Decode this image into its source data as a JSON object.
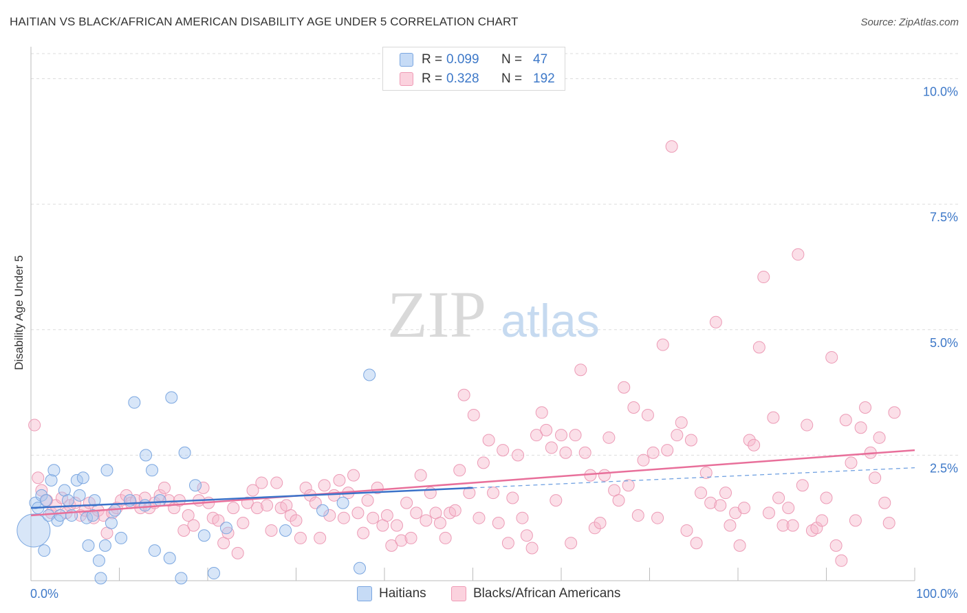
{
  "header": {
    "title": "HAITIAN VS BLACK/AFRICAN AMERICAN DISABILITY AGE UNDER 5 CORRELATION CHART",
    "source": "Source: ZipAtlas.com"
  },
  "watermark": {
    "zip": "ZIP",
    "atlas": "atlas"
  },
  "legend": {
    "rows": [
      {
        "r_label": "R =",
        "r_value": "0.099",
        "n_label": "N =",
        "n_value": "47",
        "color": "#a9c8f0"
      },
      {
        "r_label": "R =",
        "r_value": "0.328",
        "n_label": "N =",
        "n_value": "192",
        "color": "#f6b8cb"
      }
    ]
  },
  "bottom_legend": {
    "haitians": "Haitians",
    "blacks": "Blacks/African Americans"
  },
  "chart_data": {
    "type": "scatter",
    "title": "HAITIAN VS BLACK/AFRICAN AMERICAN DISABILITY AGE UNDER 5 CORRELATION CHART",
    "xlabel": "",
    "ylabel": "Disability Age Under 5",
    "xlim": [
      0,
      100
    ],
    "ylim": [
      0,
      10.5
    ],
    "x_tick_labels": [
      "0.0%",
      "100.0%"
    ],
    "y_tick_labels": [
      "2.5%",
      "5.0%",
      "7.5%",
      "10.0%"
    ],
    "y_ticks": [
      2.5,
      5.0,
      7.5,
      10.0
    ],
    "grid": true,
    "legend_position": "top-center",
    "series": [
      {
        "name": "Haitians",
        "color": "#6a9de0",
        "fill": "#a9c8f0",
        "r": 0.099,
        "n": 47,
        "trend": {
          "x0": 0,
          "y0": 1.45,
          "x1": 50,
          "y1": 1.85,
          "dash_to_x": 100,
          "dash_to_y": 2.25
        },
        "points": [
          [
            0.3,
            1.0,
            3
          ],
          [
            0.5,
            1.55,
            1
          ],
          [
            0.8,
            1.45,
            1
          ],
          [
            1.2,
            1.7,
            1
          ],
          [
            1.5,
            0.6,
            1
          ],
          [
            1.7,
            1.6,
            1
          ],
          [
            2.0,
            1.3,
            1
          ],
          [
            2.3,
            2.0,
            1
          ],
          [
            2.6,
            2.2,
            1
          ],
          [
            3.0,
            1.2,
            1
          ],
          [
            3.3,
            1.3,
            1
          ],
          [
            3.8,
            1.8,
            1
          ],
          [
            4.2,
            1.6,
            1
          ],
          [
            4.6,
            1.3,
            1
          ],
          [
            5.2,
            2.0,
            1
          ],
          [
            5.5,
            1.7,
            1
          ],
          [
            5.9,
            2.05,
            1
          ],
          [
            6.3,
            1.25,
            1
          ],
          [
            6.5,
            0.7,
            1
          ],
          [
            7.0,
            1.3,
            1
          ],
          [
            7.2,
            1.6,
            1
          ],
          [
            7.7,
            0.4,
            1
          ],
          [
            7.9,
            0.05,
            1
          ],
          [
            8.4,
            0.7,
            1
          ],
          [
            8.6,
            2.2,
            1
          ],
          [
            9.1,
            1.15,
            1
          ],
          [
            9.5,
            1.4,
            1
          ],
          [
            10.2,
            0.85,
            1
          ],
          [
            11.2,
            1.6,
            1
          ],
          [
            11.7,
            3.55,
            1
          ],
          [
            12.9,
            1.5,
            1
          ],
          [
            13.0,
            2.5,
            1
          ],
          [
            13.7,
            2.2,
            1
          ],
          [
            14.0,
            0.6,
            1
          ],
          [
            14.6,
            1.6,
            1
          ],
          [
            15.7,
            0.45,
            1
          ],
          [
            15.9,
            3.65,
            1
          ],
          [
            17.0,
            0.05,
            1
          ],
          [
            17.4,
            2.55,
            1
          ],
          [
            18.6,
            1.9,
            1
          ],
          [
            19.6,
            0.9,
            1
          ],
          [
            20.7,
            0.15,
            1
          ],
          [
            22.1,
            1.05,
            1
          ],
          [
            28.8,
            1.0,
            1
          ],
          [
            33.0,
            1.4,
            1
          ],
          [
            35.3,
            1.55,
            1
          ],
          [
            37.2,
            0.25,
            1
          ],
          [
            38.3,
            4.1,
            1
          ]
        ]
      },
      {
        "name": "Blacks/African Americans",
        "color": "#e86f9a",
        "fill": "#f6b8cb",
        "r": 0.328,
        "n": 192,
        "trend": {
          "x0": 0,
          "y0": 1.3,
          "x1": 100,
          "y1": 2.6
        },
        "points": [
          [
            0.4,
            3.1
          ],
          [
            0.8,
            2.05
          ],
          [
            1.2,
            1.8
          ],
          [
            1.8,
            1.6
          ],
          [
            2.3,
            1.35
          ],
          [
            2.8,
            1.5
          ],
          [
            3.5,
            1.65
          ],
          [
            4.0,
            1.35
          ],
          [
            4.4,
            1.5
          ],
          [
            5.0,
            1.55
          ],
          [
            5.6,
            1.3
          ],
          [
            6.1,
            1.4
          ],
          [
            6.6,
            1.55
          ],
          [
            7.1,
            1.25
          ],
          [
            7.6,
            1.4
          ],
          [
            8.2,
            1.3
          ],
          [
            8.6,
            0.95
          ],
          [
            9.2,
            1.35
          ],
          [
            9.7,
            1.45
          ],
          [
            10.2,
            1.6
          ],
          [
            10.8,
            1.7
          ],
          [
            11.3,
            1.55
          ],
          [
            11.9,
            1.6
          ],
          [
            12.4,
            1.45
          ],
          [
            12.9,
            1.65
          ],
          [
            13.4,
            1.45
          ],
          [
            14.0,
            1.55
          ],
          [
            14.6,
            1.7
          ],
          [
            15.1,
            1.85
          ],
          [
            15.6,
            1.6
          ],
          [
            16.2,
            1.45
          ],
          [
            16.8,
            1.6
          ],
          [
            17.3,
            1.0
          ],
          [
            17.8,
            1.3
          ],
          [
            18.4,
            1.1
          ],
          [
            19.0,
            1.6
          ],
          [
            19.5,
            1.85
          ],
          [
            20.1,
            1.55
          ],
          [
            20.6,
            1.25
          ],
          [
            21.2,
            1.2
          ],
          [
            21.8,
            0.75
          ],
          [
            22.3,
            0.95
          ],
          [
            22.9,
            1.45
          ],
          [
            23.4,
            0.55
          ],
          [
            24.0,
            1.15
          ],
          [
            24.5,
            1.55
          ],
          [
            25.1,
            1.8
          ],
          [
            25.6,
            1.45
          ],
          [
            26.1,
            1.95
          ],
          [
            26.7,
            1.5
          ],
          [
            27.2,
            1.0
          ],
          [
            27.8,
            1.95
          ],
          [
            28.3,
            1.45
          ],
          [
            28.9,
            1.5
          ],
          [
            29.4,
            1.3
          ],
          [
            30.0,
            1.2
          ],
          [
            30.5,
            0.85
          ],
          [
            31.1,
            1.85
          ],
          [
            31.6,
            1.7
          ],
          [
            32.2,
            1.55
          ],
          [
            32.7,
            0.85
          ],
          [
            33.2,
            1.9
          ],
          [
            33.8,
            1.3
          ],
          [
            34.3,
            1.7
          ],
          [
            34.9,
            2.0
          ],
          [
            35.4,
            1.25
          ],
          [
            35.9,
            1.75
          ],
          [
            36.5,
            2.1
          ],
          [
            37.0,
            1.35
          ],
          [
            37.6,
            0.95
          ],
          [
            38.1,
            1.6
          ],
          [
            38.7,
            1.25
          ],
          [
            39.2,
            1.85
          ],
          [
            39.8,
            1.1
          ],
          [
            40.3,
            1.3
          ],
          [
            40.8,
            0.7
          ],
          [
            41.4,
            1.1
          ],
          [
            41.9,
            0.8
          ],
          [
            42.5,
            1.55
          ],
          [
            43.0,
            0.85
          ],
          [
            43.6,
            1.35
          ],
          [
            44.1,
            2.1
          ],
          [
            44.7,
            1.2
          ],
          [
            45.2,
            1.75
          ],
          [
            45.8,
            1.35
          ],
          [
            46.3,
            1.15
          ],
          [
            46.9,
            0.85
          ],
          [
            47.4,
            1.35
          ],
          [
            48.0,
            1.4
          ],
          [
            48.5,
            2.2
          ],
          [
            49.0,
            3.7
          ],
          [
            49.6,
            1.75
          ],
          [
            50.1,
            3.3
          ],
          [
            50.7,
            1.25
          ],
          [
            51.2,
            2.35
          ],
          [
            51.8,
            2.8
          ],
          [
            52.3,
            1.75
          ],
          [
            52.9,
            1.15
          ],
          [
            53.4,
            2.6
          ],
          [
            54.0,
            0.75
          ],
          [
            54.5,
            1.65
          ],
          [
            55.1,
            2.5
          ],
          [
            55.6,
            1.25
          ],
          [
            56.1,
            0.9
          ],
          [
            56.7,
            0.65
          ],
          [
            57.2,
            2.9
          ],
          [
            57.8,
            3.35
          ],
          [
            58.3,
            3.0
          ],
          [
            58.9,
            2.65
          ],
          [
            59.4,
            1.6
          ],
          [
            60.0,
            2.9
          ],
          [
            60.5,
            2.55
          ],
          [
            61.1,
            0.75
          ],
          [
            61.6,
            2.9
          ],
          [
            62.2,
            4.2
          ],
          [
            62.7,
            2.55
          ],
          [
            63.3,
            2.1
          ],
          [
            63.8,
            1.05
          ],
          [
            64.4,
            1.15
          ],
          [
            64.9,
            2.1
          ],
          [
            65.4,
            2.85
          ],
          [
            66.0,
            1.8
          ],
          [
            66.5,
            1.6
          ],
          [
            67.1,
            3.85
          ],
          [
            67.6,
            1.9
          ],
          [
            68.2,
            3.45
          ],
          [
            68.7,
            1.3
          ],
          [
            69.3,
            2.4
          ],
          [
            69.8,
            3.3
          ],
          [
            70.4,
            2.55
          ],
          [
            70.9,
            1.25
          ],
          [
            71.5,
            4.7
          ],
          [
            72.0,
            2.6
          ],
          [
            72.5,
            8.65
          ],
          [
            73.1,
            2.9
          ],
          [
            73.6,
            3.15
          ],
          [
            74.2,
            1.0
          ],
          [
            74.7,
            2.8
          ],
          [
            75.3,
            0.75
          ],
          [
            75.8,
            1.75
          ],
          [
            76.4,
            2.15
          ],
          [
            76.9,
            1.55
          ],
          [
            77.5,
            5.15
          ],
          [
            78.0,
            1.5
          ],
          [
            78.6,
            1.75
          ],
          [
            79.1,
            1.1
          ],
          [
            79.7,
            1.35
          ],
          [
            80.2,
            0.7
          ],
          [
            80.7,
            1.45
          ],
          [
            81.3,
            2.8
          ],
          [
            81.8,
            2.7
          ],
          [
            82.4,
            4.65
          ],
          [
            82.9,
            6.05
          ],
          [
            83.5,
            1.35
          ],
          [
            84.0,
            3.25
          ],
          [
            84.6,
            1.65
          ],
          [
            85.1,
            1.1
          ],
          [
            85.7,
            1.45
          ],
          [
            86.2,
            1.1
          ],
          [
            86.8,
            6.5
          ],
          [
            87.3,
            1.9
          ],
          [
            87.8,
            3.1
          ],
          [
            88.4,
            1.0
          ],
          [
            88.9,
            1.05
          ],
          [
            89.5,
            1.2
          ],
          [
            90.0,
            1.65
          ],
          [
            90.6,
            4.45
          ],
          [
            91.1,
            0.7
          ],
          [
            91.7,
            0.4
          ],
          [
            92.2,
            3.2
          ],
          [
            92.8,
            2.35
          ],
          [
            93.3,
            1.2
          ],
          [
            93.9,
            3.05
          ],
          [
            94.4,
            3.45
          ],
          [
            95.0,
            2.55
          ],
          [
            95.5,
            2.05
          ],
          [
            96.0,
            2.85
          ],
          [
            96.6,
            1.55
          ],
          [
            97.1,
            1.15
          ],
          [
            97.7,
            3.35
          ]
        ]
      }
    ]
  }
}
